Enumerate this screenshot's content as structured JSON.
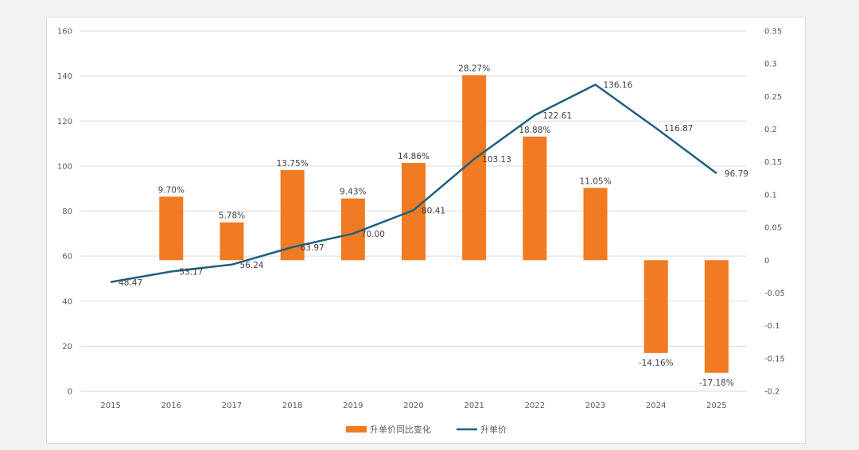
{
  "chart_data": {
    "type": "bar+line",
    "categories": [
      "2015",
      "2016",
      "2017",
      "2018",
      "2019",
      "2020",
      "2021",
      "2022",
      "2023",
      "2024",
      "2025"
    ],
    "series": [
      {
        "name": "升单价同比变化",
        "type": "bar",
        "axis": "right",
        "color": "#f07b22",
        "values": [
          null,
          0.097,
          0.0578,
          0.1375,
          0.0943,
          0.1486,
          0.2827,
          0.1888,
          0.1105,
          -0.1416,
          -0.1718
        ],
        "labels": [
          "",
          "9.70%",
          "5.78%",
          "13.75%",
          "9.43%",
          "14.86%",
          "28.27%",
          "18.88%",
          "11.05%",
          "-14.16%",
          "-17.18%"
        ]
      },
      {
        "name": "升单价",
        "type": "line",
        "axis": "left",
        "color": "#1f5f7f",
        "values": [
          48.47,
          53.17,
          56.24,
          63.97,
          70.0,
          80.41,
          103.13,
          122.61,
          136.16,
          116.87,
          96.79
        ],
        "labels": [
          "48.47",
          "53.17",
          "56.24",
          "63.97",
          "70.00",
          "80.41",
          "103.13",
          "122.61",
          "136.16",
          "116.87",
          "96.79"
        ]
      }
    ],
    "y_left": {
      "min": 0,
      "max": 160,
      "step": 20,
      "ticks": [
        "0",
        "20",
        "40",
        "60",
        "80",
        "100",
        "120",
        "140",
        "160"
      ]
    },
    "y_right": {
      "min": -0.2,
      "max": 0.35,
      "step": 0.05,
      "ticks": [
        "-0.2",
        "-0.15",
        "-0.1",
        "-0.05",
        "0",
        "0.05",
        "0.1",
        "0.15",
        "0.2",
        "0.25",
        "0.3",
        "0.35"
      ]
    },
    "grid": true,
    "legend_position": "bottom"
  }
}
